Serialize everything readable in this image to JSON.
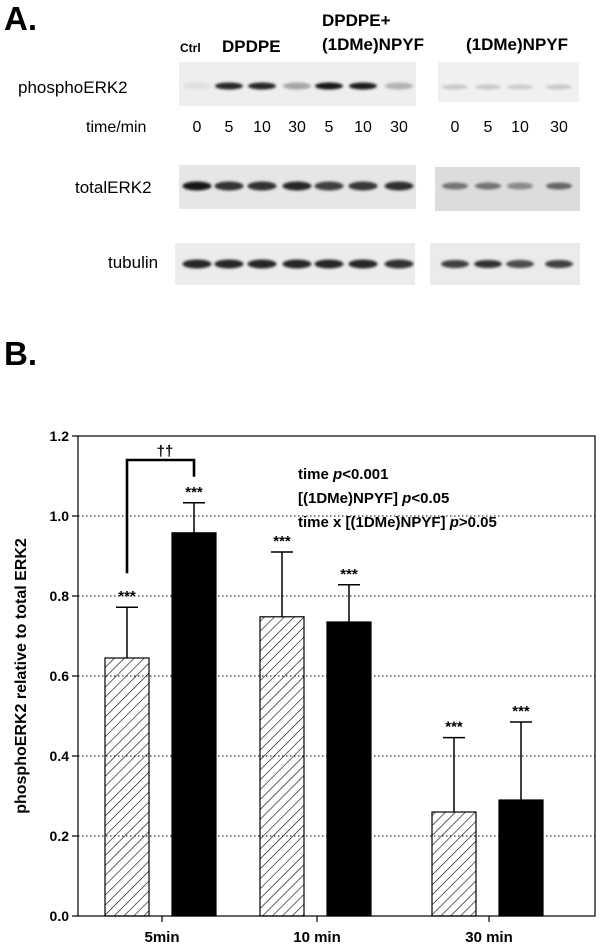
{
  "panel_a": {
    "letter": "A.",
    "lane_headers": {
      "ctrl": "Ctrl",
      "dpdpe": "DPDPE",
      "combo_line1": "DPDPE+",
      "combo_line2": "(1DMe)NPYF",
      "npyf": "(1DMe)NPYF"
    },
    "rows": [
      "phosphoERK2",
      "totalERK2",
      "tubulin"
    ],
    "time_label": "time/min",
    "times_left": [
      "0",
      "5",
      "10",
      "30",
      "5",
      "10",
      "30"
    ],
    "times_right": [
      "0",
      "5",
      "10",
      "30"
    ],
    "blot_intensity": {
      "phosphoERK2_left": [
        0.12,
        0.85,
        0.85,
        0.35,
        0.92,
        0.88,
        0.3
      ],
      "phosphoERK2_right": [
        0.22,
        0.22,
        0.2,
        0.22
      ],
      "totalERK2_left": [
        0.9,
        0.8,
        0.8,
        0.85,
        0.75,
        0.78,
        0.82
      ],
      "totalERK2_right": [
        0.55,
        0.55,
        0.45,
        0.6
      ],
      "tubulin_left": [
        0.85,
        0.85,
        0.85,
        0.85,
        0.85,
        0.85,
        0.8
      ],
      "tubulin_right": [
        0.75,
        0.8,
        0.7,
        0.75
      ]
    }
  },
  "panel_b": {
    "letter": "B."
  },
  "chart_data": {
    "type": "bar",
    "categories": [
      "5min",
      "10 min",
      "30 min"
    ],
    "ylabel": "phosphoERK2 relative to total ERK2",
    "xlabel": "",
    "ylim": [
      0,
      1.2
    ],
    "yticks": [
      "0.0",
      "0.2",
      "0.4",
      "0.6",
      "0.8",
      "1.0",
      "1.2"
    ],
    "grid": "horizontal dotted",
    "series": [
      {
        "pattern": "hatched",
        "color": "#ffffff",
        "values": [
          0.645,
          0.748,
          0.26
        ],
        "errors": [
          0.127,
          0.162,
          0.186
        ],
        "labels": [
          "***",
          "***",
          "***"
        ]
      },
      {
        "pattern": "solid",
        "color": "#000000",
        "values": [
          0.958,
          0.735,
          0.29
        ],
        "errors": [
          0.075,
          0.093,
          0.195
        ],
        "labels": [
          "***",
          "***",
          "***"
        ]
      }
    ],
    "comparison_bracket": {
      "label": "††",
      "category": "5min"
    },
    "stats_text": [
      {
        "pre": "time ",
        "italic": "p",
        "post": "<0.001"
      },
      {
        "pre": "[(1DMe)NPYF] ",
        "italic": "p",
        "post": "<0.05"
      },
      {
        "pre": "time x [(1DMe)NPYF] ",
        "italic": "p",
        "post": ">0.05"
      }
    ]
  }
}
